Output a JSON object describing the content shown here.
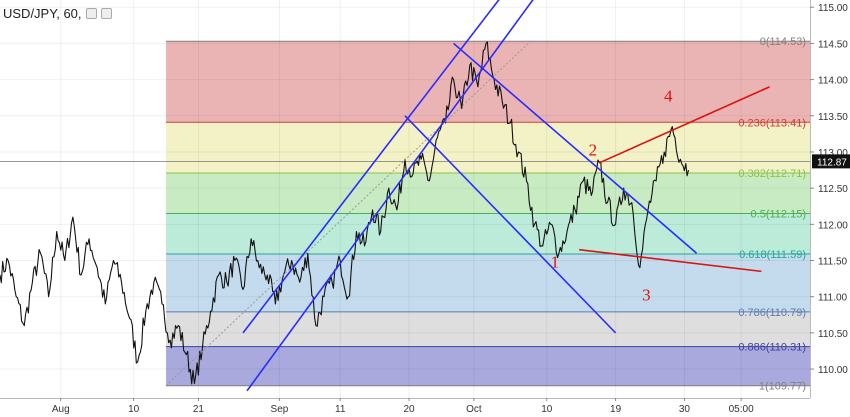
{
  "header": {
    "title": "USD/JPY, 60,",
    "icons": [
      "eye-icon",
      "settings-icon"
    ]
  },
  "chart_data": {
    "type": "line",
    "symbol": "USD/JPY",
    "interval": "60",
    "ylim": [
      109.6,
      115.1
    ],
    "y_ticks": [
      {
        "value": 110.0,
        "label": "110.00"
      },
      {
        "value": 110.5,
        "label": "110.50"
      },
      {
        "value": 111.0,
        "label": "111.00"
      },
      {
        "value": 111.5,
        "label": "111.50"
      },
      {
        "value": 112.0,
        "label": "112.00"
      },
      {
        "value": 112.5,
        "label": "112.50"
      },
      {
        "value": 113.0,
        "label": "113.00"
      },
      {
        "value": 113.5,
        "label": "113.50"
      },
      {
        "value": 114.0,
        "label": "114.00"
      },
      {
        "value": 114.5,
        "label": "114.50"
      },
      {
        "value": 115.0,
        "label": "115.00"
      }
    ],
    "xlim": [
      0,
      100
    ],
    "x_ticks": [
      {
        "value": 7.5,
        "label": "Aug"
      },
      {
        "value": 16.5,
        "label": "10"
      },
      {
        "value": 24.5,
        "label": "21"
      },
      {
        "value": 34.5,
        "label": "Sep"
      },
      {
        "value": 42.0,
        "label": "11"
      },
      {
        "value": 50.5,
        "label": "20"
      },
      {
        "value": 58.5,
        "label": "Oct"
      },
      {
        "value": 67.5,
        "label": "10"
      },
      {
        "value": 76.0,
        "label": "19"
      },
      {
        "value": 84.5,
        "label": "30"
      },
      {
        "value": 91.5,
        "label": "05:00"
      }
    ],
    "current_price": {
      "value": 112.87,
      "label": "112.87"
    },
    "series": [
      {
        "points": [
          [
            0,
            111.3
          ],
          [
            1,
            111.5
          ],
          [
            2,
            111.0
          ],
          [
            3,
            110.6
          ],
          [
            4,
            111.2
          ],
          [
            5,
            111.6
          ],
          [
            6,
            111.0
          ],
          [
            7,
            111.9
          ],
          [
            8,
            111.5
          ],
          [
            9,
            112.1
          ],
          [
            10,
            111.3
          ],
          [
            11,
            111.8
          ],
          [
            12,
            111.4
          ],
          [
            13,
            110.9
          ],
          [
            14,
            111.5
          ],
          [
            15,
            111.2
          ],
          [
            16,
            110.7
          ],
          [
            17,
            110.1
          ],
          [
            18,
            110.8
          ],
          [
            19,
            111.2
          ],
          [
            20,
            110.9
          ],
          [
            21,
            110.4
          ],
          [
            22,
            110.6
          ],
          [
            23,
            110.2
          ],
          [
            24,
            109.8
          ],
          [
            25,
            110.3
          ],
          [
            26,
            110.8
          ],
          [
            27,
            111.3
          ],
          [
            28,
            111.2
          ],
          [
            29,
            111.5
          ],
          [
            30,
            111.1
          ],
          [
            31,
            111.8
          ],
          [
            32,
            111.4
          ],
          [
            33,
            111.3
          ],
          [
            34,
            110.9
          ],
          [
            35,
            111.3
          ],
          [
            36,
            111.5
          ],
          [
            37,
            111.2
          ],
          [
            38,
            111.6
          ],
          [
            39,
            110.6
          ],
          [
            40,
            111.0
          ],
          [
            41,
            111.2
          ],
          [
            42,
            111.5
          ],
          [
            43,
            111.0
          ],
          [
            44,
            111.9
          ],
          [
            45,
            111.7
          ],
          [
            46,
            112.2
          ],
          [
            47,
            111.9
          ],
          [
            48,
            112.5
          ],
          [
            49,
            112.2
          ],
          [
            50,
            112.9
          ],
          [
            51,
            112.7
          ],
          [
            52,
            112.9
          ],
          [
            53,
            112.6
          ],
          [
            54,
            113.2
          ],
          [
            55,
            113.4
          ],
          [
            56,
            114.0
          ],
          [
            57,
            113.6
          ],
          [
            58,
            114.2
          ],
          [
            59,
            113.9
          ],
          [
            60,
            114.5
          ],
          [
            61,
            114.0
          ],
          [
            62,
            113.7
          ],
          [
            63,
            113.4
          ],
          [
            64,
            113.0
          ],
          [
            65,
            112.6
          ],
          [
            66,
            112.0
          ],
          [
            67,
            111.7
          ],
          [
            68,
            112.0
          ],
          [
            69,
            111.6
          ],
          [
            70,
            111.9
          ],
          [
            71,
            112.2
          ],
          [
            72,
            112.6
          ],
          [
            73,
            112.4
          ],
          [
            74,
            112.85
          ],
          [
            75,
            112.3
          ],
          [
            76,
            112.0
          ],
          [
            77,
            112.5
          ],
          [
            78,
            112.3
          ],
          [
            79,
            111.4
          ],
          [
            80,
            112.2
          ],
          [
            81,
            112.6
          ],
          [
            82,
            113.0
          ],
          [
            83,
            113.35
          ],
          [
            84,
            112.9
          ],
          [
            85,
            112.75
          ]
        ]
      }
    ],
    "fibonacci": {
      "levels": [
        {
          "ratio": "0",
          "value": 114.53,
          "label": "0(114.53)",
          "color": "#808080",
          "fill": "#ebb4b4"
        },
        {
          "ratio": "0.236",
          "value": 113.41,
          "label": "0.236(113.41)",
          "color": "#d43a3a",
          "fill": "#f2f2c6"
        },
        {
          "ratio": "0.382",
          "value": 112.71,
          "label": "0.382(112.71)",
          "color": "#8bc34a",
          "fill": "#c9ebc3"
        },
        {
          "ratio": "0.5",
          "value": 112.15,
          "label": "0.5(112.15)",
          "color": "#4caf50",
          "fill": "#bdebd9"
        },
        {
          "ratio": "0.618",
          "value": 111.59,
          "label": "0.618(111.59)",
          "color": "#26a69a",
          "fill": "#c3dbec"
        },
        {
          "ratio": "0.786",
          "value": 110.79,
          "label": "0.786(110.79)",
          "color": "#5c7bb0",
          "fill": "#dedede"
        },
        {
          "ratio": "0.886",
          "value": 110.31,
          "label": "0.886(110.31)",
          "color": "#3f3fa0",
          "fill": "#a9a9dd"
        },
        {
          "ratio": "1",
          "value": 109.77,
          "label": "1(109.77)",
          "color": "#808080",
          "fill": null
        }
      ],
      "x_start": 20.5,
      "x_end": 100
    },
    "trendlines": [
      {
        "color": "#2b2bff",
        "from": [
          30.5,
          109.7
        ],
        "to": [
          71,
          115.9
        ]
      },
      {
        "color": "#2b2bff",
        "from": [
          30,
          110.5
        ],
        "to": [
          65,
          115.6
        ]
      },
      {
        "color": "#2b2bff",
        "from": [
          50,
          113.5
        ],
        "to": [
          76,
          110.5
        ]
      },
      {
        "color": "#2b2bff",
        "from": [
          56,
          114.5
        ],
        "to": [
          86,
          111.6
        ]
      },
      {
        "color": "#dd1111",
        "from": [
          74,
          112.85
        ],
        "to": [
          95,
          113.9
        ]
      },
      {
        "color": "#dd1111",
        "from": [
          71.5,
          111.65
        ],
        "to": [
          94,
          111.35
        ]
      }
    ],
    "dotted_line": {
      "color": "#999999",
      "from": [
        20.5,
        109.77
      ],
      "to": [
        65.5,
        114.53
      ]
    },
    "annotations": [
      {
        "text": "1",
        "x": 68.5,
        "y": 111.4,
        "color": "#dd1111"
      },
      {
        "text": "2",
        "x": 73.2,
        "y": 112.95,
        "color": "#dd1111"
      },
      {
        "text": "3",
        "x": 79.8,
        "y": 110.95,
        "color": "#dd1111"
      },
      {
        "text": "4",
        "x": 82.5,
        "y": 113.7,
        "color": "#dd1111"
      }
    ],
    "grid": true
  }
}
